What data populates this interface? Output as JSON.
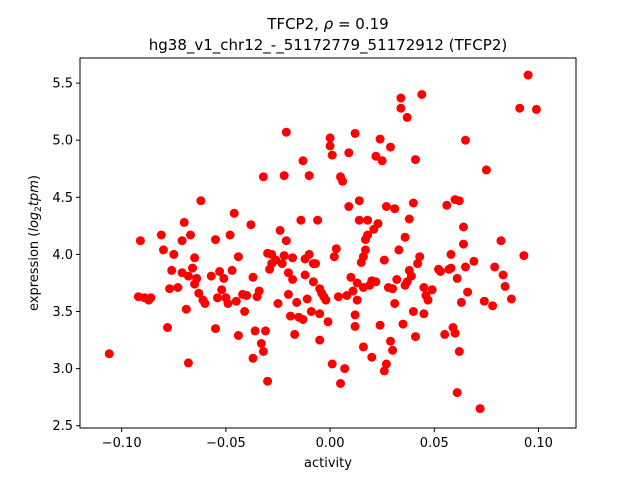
{
  "chart_data": {
    "type": "scatter",
    "title_main": "TFCP2, ",
    "title_rho_symbol": "ρ",
    "title_rho_value": " = 0.19",
    "subtitle": "hg38_v1_chr12_-_51172779_51172912 (TFCP2)",
    "xlabel": "activity",
    "ylabel_prefix": "expression (",
    "ylabel_math": "log",
    "ylabel_sub": "2",
    "ylabel_math2": "tpm",
    "ylabel_suffix": ")",
    "xlim": [
      -0.12,
      0.118
    ],
    "ylim": [
      2.48,
      5.72
    ],
    "xticks": [
      -0.1,
      -0.05,
      0.0,
      0.05,
      0.1
    ],
    "xtick_labels": [
      "−0.10",
      "−0.05",
      "0.00",
      "0.05",
      "0.10"
    ],
    "yticks": [
      2.5,
      3.0,
      3.5,
      4.0,
      4.5,
      5.0,
      5.5
    ],
    "ytick_labels": [
      "2.5",
      "3.0",
      "3.5",
      "4.0",
      "4.5",
      "5.0",
      "5.5"
    ],
    "grid": false,
    "marker_color": "#ff0000",
    "points": [
      [
        -0.106,
        3.13
      ],
      [
        -0.092,
        3.63
      ],
      [
        -0.091,
        4.12
      ],
      [
        -0.089,
        3.62
      ],
      [
        -0.087,
        3.6
      ],
      [
        -0.086,
        3.62
      ],
      [
        -0.081,
        4.17
      ],
      [
        -0.08,
        4.04
      ],
      [
        -0.078,
        3.36
      ],
      [
        -0.077,
        3.7
      ],
      [
        -0.076,
        3.86
      ],
      [
        -0.075,
        4.0
      ],
      [
        -0.073,
        3.71
      ],
      [
        -0.071,
        3.84
      ],
      [
        -0.071,
        4.12
      ],
      [
        -0.07,
        4.28
      ],
      [
        -0.069,
        3.52
      ],
      [
        -0.068,
        3.05
      ],
      [
        -0.068,
        3.81
      ],
      [
        -0.067,
        4.17
      ],
      [
        -0.066,
        3.88
      ],
      [
        -0.065,
        3.97
      ],
      [
        -0.065,
        3.74
      ],
      [
        -0.064,
        3.79
      ],
      [
        -0.063,
        3.66
      ],
      [
        -0.062,
        4.47
      ],
      [
        -0.061,
        3.6
      ],
      [
        -0.06,
        3.57
      ],
      [
        -0.057,
        3.81
      ],
      [
        -0.055,
        3.35
      ],
      [
        -0.055,
        4.13
      ],
      [
        -0.054,
        3.62
      ],
      [
        -0.053,
        3.85
      ],
      [
        -0.052,
        3.69
      ],
      [
        -0.051,
        3.79
      ],
      [
        -0.05,
        3.62
      ],
      [
        -0.049,
        3.57
      ],
      [
        -0.048,
        4.17
      ],
      [
        -0.047,
        3.86
      ],
      [
        -0.046,
        4.36
      ],
      [
        -0.045,
        3.59
      ],
      [
        -0.044,
        3.29
      ],
      [
        -0.044,
        3.98
      ],
      [
        -0.042,
        3.65
      ],
      [
        -0.041,
        3.5
      ],
      [
        -0.04,
        3.64
      ],
      [
        -0.038,
        4.26
      ],
      [
        -0.037,
        3.09
      ],
      [
        -0.037,
        3.8
      ],
      [
        -0.036,
        3.33
      ],
      [
        -0.035,
        3.63
      ],
      [
        -0.034,
        3.68
      ],
      [
        -0.033,
        3.22
      ],
      [
        -0.032,
        3.15
      ],
      [
        -0.032,
        4.68
      ],
      [
        -0.031,
        3.33
      ],
      [
        -0.03,
        4.01
      ],
      [
        -0.03,
        2.89
      ],
      [
        -0.029,
        3.87
      ],
      [
        -0.028,
        4.0
      ],
      [
        -0.028,
        3.92
      ],
      [
        -0.026,
        3.95
      ],
      [
        -0.025,
        3.57
      ],
      [
        -0.024,
        4.21
      ],
      [
        -0.023,
        3.92
      ],
      [
        -0.022,
        3.99
      ],
      [
        -0.022,
        4.69
      ],
      [
        -0.021,
        5.07
      ],
      [
        -0.021,
        4.12
      ],
      [
        -0.02,
        3.84
      ],
      [
        -0.02,
        3.65
      ],
      [
        -0.019,
        3.46
      ],
      [
        -0.018,
        3.78
      ],
      [
        -0.018,
        3.97
      ],
      [
        -0.017,
        3.3
      ],
      [
        -0.016,
        3.58
      ],
      [
        -0.015,
        3.45
      ],
      [
        -0.014,
        4.3
      ],
      [
        -0.013,
        3.43
      ],
      [
        -0.013,
        4.82
      ],
      [
        -0.012,
        3.82
      ],
      [
        -0.012,
        3.96
      ],
      [
        -0.011,
        3.61
      ],
      [
        -0.01,
        4.0
      ],
      [
        -0.01,
        4.69
      ],
      [
        -0.009,
        3.5
      ],
      [
        -0.008,
        3.92
      ],
      [
        -0.008,
        3.76
      ],
      [
        -0.007,
        3.92
      ],
      [
        -0.006,
        4.3
      ],
      [
        -0.005,
        3.7
      ],
      [
        -0.005,
        3.48
      ],
      [
        -0.005,
        3.25
      ],
      [
        -0.004,
        3.66
      ],
      [
        -0.003,
        3.63
      ],
      [
        -0.002,
        3.6
      ],
      [
        -0.001,
        3.41
      ],
      [
        0.0,
        4.95
      ],
      [
        0.0,
        5.02
      ],
      [
        0.001,
        3.04
      ],
      [
        0.001,
        4.87
      ],
      [
        0.002,
        3.98
      ],
      [
        0.003,
        4.05
      ],
      [
        0.004,
        3.63
      ],
      [
        0.005,
        2.87
      ],
      [
        0.005,
        4.68
      ],
      [
        0.006,
        4.64
      ],
      [
        0.007,
        3.0
      ],
      [
        0.008,
        3.64
      ],
      [
        0.009,
        4.42
      ],
      [
        0.009,
        4.89
      ],
      [
        0.01,
        3.8
      ],
      [
        0.011,
        3.68
      ],
      [
        0.012,
        5.06
      ],
      [
        0.012,
        3.47
      ],
      [
        0.012,
        3.37
      ],
      [
        0.013,
        3.75
      ],
      [
        0.013,
        3.6
      ],
      [
        0.014,
        4.47
      ],
      [
        0.014,
        4.3
      ],
      [
        0.015,
        3.93
      ],
      [
        0.016,
        3.71
      ],
      [
        0.016,
        3.19
      ],
      [
        0.016,
        3.98
      ],
      [
        0.017,
        4.04
      ],
      [
        0.017,
        4.13
      ],
      [
        0.018,
        4.17
      ],
      [
        0.018,
        4.3
      ],
      [
        0.019,
        3.73
      ],
      [
        0.02,
        3.1
      ],
      [
        0.02,
        3.77
      ],
      [
        0.021,
        4.22
      ],
      [
        0.022,
        4.86
      ],
      [
        0.022,
        3.76
      ],
      [
        0.023,
        4.27
      ],
      [
        0.024,
        5.01
      ],
      [
        0.024,
        3.38
      ],
      [
        0.025,
        4.82
      ],
      [
        0.026,
        3.95
      ],
      [
        0.026,
        2.98
      ],
      [
        0.027,
        4.42
      ],
      [
        0.027,
        3.04
      ],
      [
        0.028,
        3.71
      ],
      [
        0.029,
        4.94
      ],
      [
        0.029,
        3.24
      ],
      [
        0.03,
        3.7
      ],
      [
        0.03,
        3.16
      ],
      [
        0.031,
        3.57
      ],
      [
        0.031,
        4.4
      ],
      [
        0.032,
        3.78
      ],
      [
        0.033,
        4.04
      ],
      [
        0.034,
        5.28
      ],
      [
        0.034,
        5.37
      ],
      [
        0.035,
        3.39
      ],
      [
        0.036,
        3.73
      ],
      [
        0.036,
        4.15
      ],
      [
        0.037,
        3.76
      ],
      [
        0.037,
        5.2
      ],
      [
        0.038,
        3.86
      ],
      [
        0.038,
        4.31
      ],
      [
        0.039,
        3.81
      ],
      [
        0.04,
        3.5
      ],
      [
        0.04,
        4.45
      ],
      [
        0.041,
        3.28
      ],
      [
        0.041,
        4.83
      ],
      [
        0.042,
        3.92
      ],
      [
        0.043,
        3.98
      ],
      [
        0.044,
        5.4
      ],
      [
        0.045,
        3.71
      ],
      [
        0.045,
        3.48
      ],
      [
        0.046,
        3.64
      ],
      [
        0.047,
        3.6
      ],
      [
        0.049,
        3.69
      ],
      [
        0.052,
        3.87
      ],
      [
        0.053,
        3.85
      ],
      [
        0.055,
        3.3
      ],
      [
        0.056,
        4.43
      ],
      [
        0.057,
        3.87
      ],
      [
        0.058,
        4.0
      ],
      [
        0.058,
        3.88
      ],
      [
        0.059,
        3.36
      ],
      [
        0.06,
        3.31
      ],
      [
        0.06,
        4.48
      ],
      [
        0.061,
        3.79
      ],
      [
        0.061,
        2.79
      ],
      [
        0.062,
        4.47
      ],
      [
        0.062,
        3.15
      ],
      [
        0.063,
        3.58
      ],
      [
        0.064,
        4.24
      ],
      [
        0.064,
        4.09
      ],
      [
        0.065,
        5.0
      ],
      [
        0.065,
        3.89
      ],
      [
        0.066,
        3.67
      ],
      [
        0.069,
        3.94
      ],
      [
        0.072,
        2.65
      ],
      [
        0.074,
        3.59
      ],
      [
        0.075,
        4.74
      ],
      [
        0.078,
        3.55
      ],
      [
        0.079,
        3.89
      ],
      [
        0.082,
        4.12
      ],
      [
        0.083,
        3.82
      ],
      [
        0.084,
        3.72
      ],
      [
        0.087,
        3.61
      ],
      [
        0.091,
        5.28
      ],
      [
        0.093,
        3.99
      ],
      [
        0.095,
        5.57
      ],
      [
        0.099,
        5.27
      ]
    ]
  }
}
